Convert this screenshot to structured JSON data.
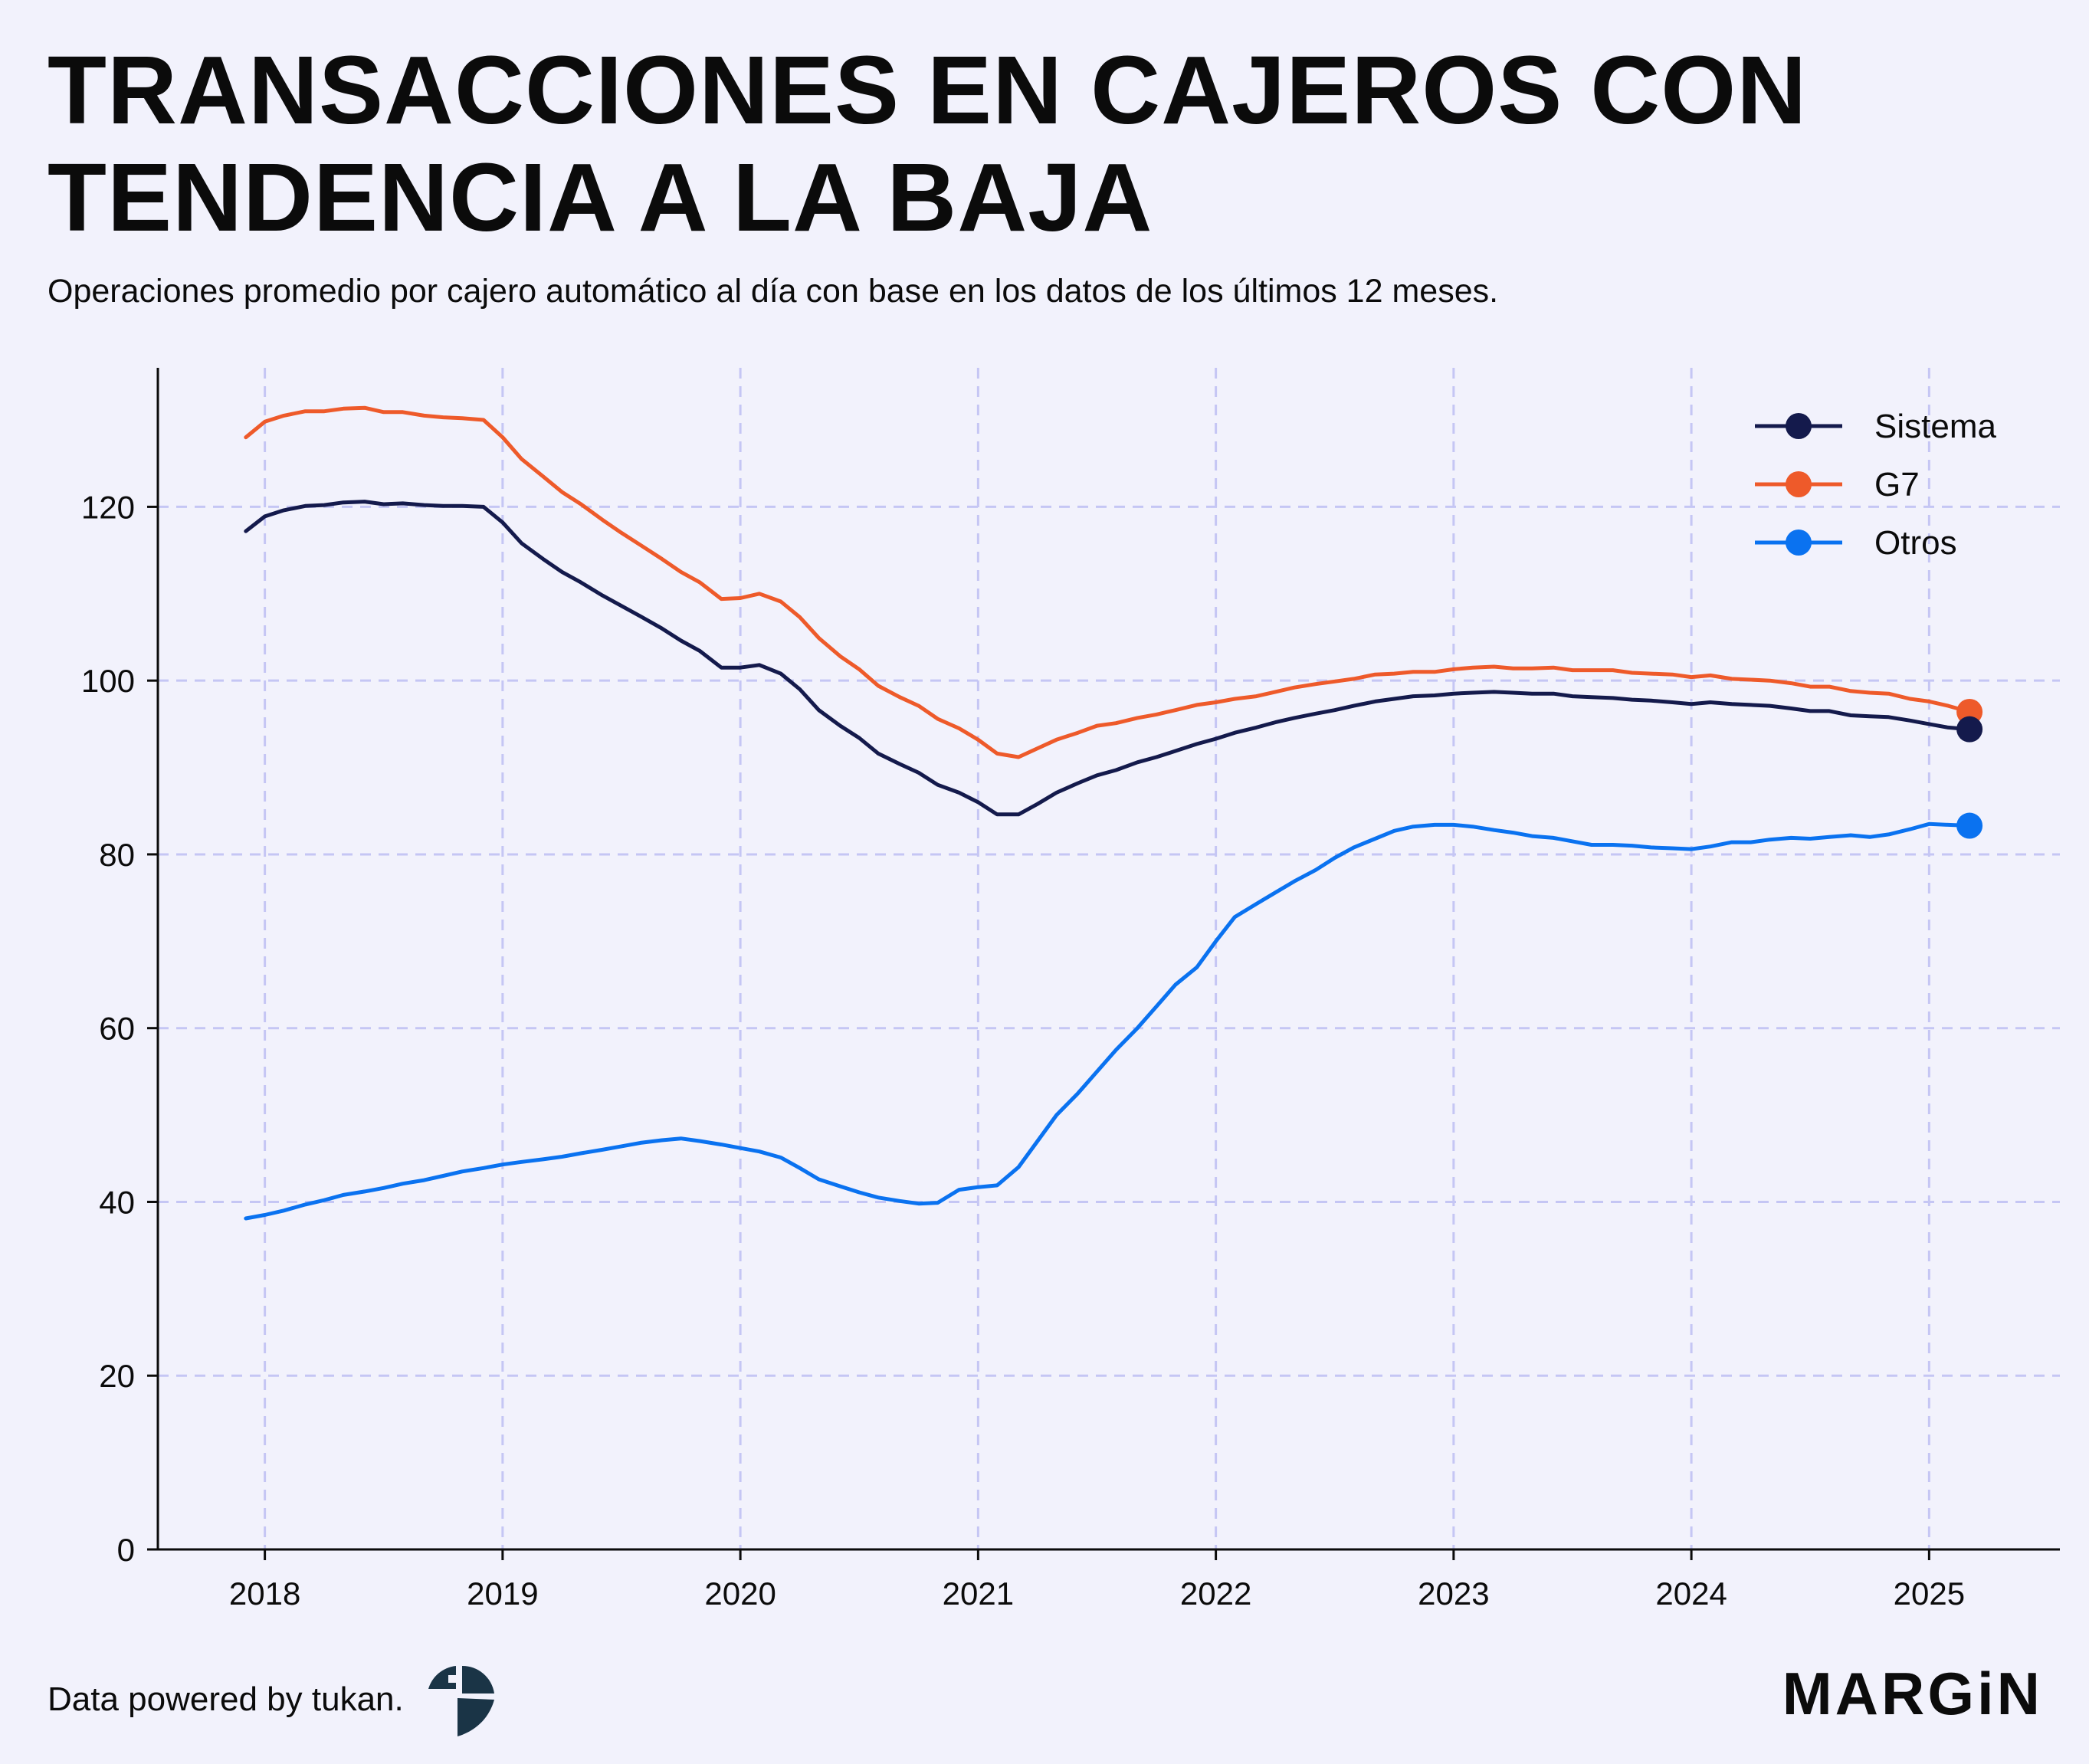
{
  "title_lines": [
    "TRANSACCIONES EN CAJEROS CON",
    "TENDENCIA A LA BAJA"
  ],
  "subtitle": "Operaciones promedio por cajero automático al día con base en los datos de los últimos 12 meses.",
  "footer": {
    "source": "Data powered by tukan.",
    "brand": "MARGiN"
  },
  "colors": {
    "sistema": "#141a4c",
    "g7": "#ee5a2a",
    "otros": "#0a72f0",
    "background": "#f2f2fc",
    "grid": "#c5c6f4"
  },
  "chart_data": {
    "type": "line",
    "title": "TRANSACCIONES EN CAJEROS CON TENDENCIA A LA BAJA",
    "xlabel": "",
    "ylabel": "",
    "xlim": [
      2017.55,
      2025.55
    ],
    "ylim": [
      0,
      136
    ],
    "x_ticks": [
      2018,
      2019,
      2020,
      2021,
      2022,
      2023,
      2024,
      2025
    ],
    "y_ticks": [
      0,
      20,
      40,
      60,
      80,
      100,
      120
    ],
    "grid": true,
    "legend_position": "top-right",
    "series": [
      {
        "name": "Sistema",
        "color": "#141a4c",
        "points": [
          [
            2017.92,
            117.2
          ],
          [
            2018.0,
            118.9
          ],
          [
            2018.08,
            119.6
          ],
          [
            2018.17,
            120.1
          ],
          [
            2018.25,
            120.2
          ],
          [
            2018.33,
            120.5
          ],
          [
            2018.42,
            120.6
          ],
          [
            2018.5,
            120.3
          ],
          [
            2018.58,
            120.4
          ],
          [
            2018.67,
            120.2
          ],
          [
            2018.75,
            120.1
          ],
          [
            2018.83,
            120.1
          ],
          [
            2018.92,
            120.0
          ],
          [
            2019.0,
            118.2
          ],
          [
            2019.08,
            115.8
          ],
          [
            2019.17,
            114.0
          ],
          [
            2019.25,
            112.5
          ],
          [
            2019.33,
            111.3
          ],
          [
            2019.42,
            109.8
          ],
          [
            2019.5,
            108.6
          ],
          [
            2019.58,
            107.4
          ],
          [
            2019.67,
            106.0
          ],
          [
            2019.75,
            104.6
          ],
          [
            2019.83,
            103.4
          ],
          [
            2019.92,
            101.5
          ],
          [
            2020.0,
            101.5
          ],
          [
            2020.08,
            101.8
          ],
          [
            2020.17,
            100.8
          ],
          [
            2020.25,
            99.0
          ],
          [
            2020.33,
            96.6
          ],
          [
            2020.42,
            94.8
          ],
          [
            2020.5,
            93.4
          ],
          [
            2020.58,
            91.6
          ],
          [
            2020.67,
            90.4
          ],
          [
            2020.75,
            89.4
          ],
          [
            2020.83,
            88.0
          ],
          [
            2020.92,
            87.1
          ],
          [
            2021.0,
            86.0
          ],
          [
            2021.08,
            84.6
          ],
          [
            2021.17,
            84.6
          ],
          [
            2021.25,
            85.8
          ],
          [
            2021.33,
            87.1
          ],
          [
            2021.42,
            88.2
          ],
          [
            2021.5,
            89.1
          ],
          [
            2021.58,
            89.7
          ],
          [
            2021.67,
            90.6
          ],
          [
            2021.75,
            91.2
          ],
          [
            2021.83,
            91.9
          ],
          [
            2021.92,
            92.7
          ],
          [
            2022.0,
            93.3
          ],
          [
            2022.08,
            94.0
          ],
          [
            2022.17,
            94.6
          ],
          [
            2022.25,
            95.2
          ],
          [
            2022.33,
            95.7
          ],
          [
            2022.42,
            96.2
          ],
          [
            2022.5,
            96.6
          ],
          [
            2022.58,
            97.1
          ],
          [
            2022.67,
            97.6
          ],
          [
            2022.75,
            97.9
          ],
          [
            2022.83,
            98.2
          ],
          [
            2022.92,
            98.3
          ],
          [
            2023.0,
            98.5
          ],
          [
            2023.08,
            98.6
          ],
          [
            2023.17,
            98.7
          ],
          [
            2023.25,
            98.6
          ],
          [
            2023.33,
            98.5
          ],
          [
            2023.42,
            98.5
          ],
          [
            2023.5,
            98.2
          ],
          [
            2023.58,
            98.1
          ],
          [
            2023.67,
            98.0
          ],
          [
            2023.75,
            97.8
          ],
          [
            2023.83,
            97.7
          ],
          [
            2023.92,
            97.5
          ],
          [
            2024.0,
            97.3
          ],
          [
            2024.08,
            97.5
          ],
          [
            2024.17,
            97.3
          ],
          [
            2024.25,
            97.2
          ],
          [
            2024.33,
            97.1
          ],
          [
            2024.42,
            96.8
          ],
          [
            2024.5,
            96.5
          ],
          [
            2024.58,
            96.5
          ],
          [
            2024.67,
            96.0
          ],
          [
            2024.75,
            95.9
          ],
          [
            2024.83,
            95.8
          ],
          [
            2024.92,
            95.4
          ],
          [
            2025.0,
            95.0
          ],
          [
            2025.08,
            94.6
          ],
          [
            2025.17,
            94.4
          ]
        ]
      },
      {
        "name": "G7",
        "color": "#ee5a2a",
        "points": [
          [
            2017.92,
            128.0
          ],
          [
            2018.0,
            129.8
          ],
          [
            2018.08,
            130.5
          ],
          [
            2018.17,
            131.0
          ],
          [
            2018.25,
            131.0
          ],
          [
            2018.33,
            131.3
          ],
          [
            2018.42,
            131.4
          ],
          [
            2018.5,
            130.9
          ],
          [
            2018.58,
            130.9
          ],
          [
            2018.67,
            130.5
          ],
          [
            2018.75,
            130.3
          ],
          [
            2018.83,
            130.2
          ],
          [
            2018.92,
            130.0
          ],
          [
            2019.0,
            128.0
          ],
          [
            2019.08,
            125.5
          ],
          [
            2019.17,
            123.5
          ],
          [
            2019.25,
            121.7
          ],
          [
            2019.33,
            120.3
          ],
          [
            2019.42,
            118.5
          ],
          [
            2019.5,
            117.0
          ],
          [
            2019.58,
            115.6
          ],
          [
            2019.67,
            114.0
          ],
          [
            2019.75,
            112.5
          ],
          [
            2019.83,
            111.3
          ],
          [
            2019.92,
            109.4
          ],
          [
            2020.0,
            109.5
          ],
          [
            2020.08,
            110.0
          ],
          [
            2020.17,
            109.1
          ],
          [
            2020.25,
            107.3
          ],
          [
            2020.33,
            104.9
          ],
          [
            2020.42,
            102.8
          ],
          [
            2020.5,
            101.3
          ],
          [
            2020.58,
            99.4
          ],
          [
            2020.67,
            98.1
          ],
          [
            2020.75,
            97.1
          ],
          [
            2020.83,
            95.6
          ],
          [
            2020.92,
            94.5
          ],
          [
            2021.0,
            93.2
          ],
          [
            2021.08,
            91.6
          ],
          [
            2021.17,
            91.2
          ],
          [
            2021.25,
            92.2
          ],
          [
            2021.33,
            93.2
          ],
          [
            2021.42,
            94.0
          ],
          [
            2021.5,
            94.8
          ],
          [
            2021.58,
            95.1
          ],
          [
            2021.67,
            95.7
          ],
          [
            2021.75,
            96.1
          ],
          [
            2021.83,
            96.6
          ],
          [
            2021.92,
            97.2
          ],
          [
            2022.0,
            97.5
          ],
          [
            2022.08,
            97.9
          ],
          [
            2022.17,
            98.2
          ],
          [
            2022.25,
            98.7
          ],
          [
            2022.33,
            99.2
          ],
          [
            2022.42,
            99.6
          ],
          [
            2022.5,
            99.9
          ],
          [
            2022.58,
            100.2
          ],
          [
            2022.67,
            100.7
          ],
          [
            2022.75,
            100.8
          ],
          [
            2022.83,
            101.0
          ],
          [
            2022.92,
            101.0
          ],
          [
            2023.0,
            101.3
          ],
          [
            2023.08,
            101.5
          ],
          [
            2023.17,
            101.6
          ],
          [
            2023.25,
            101.4
          ],
          [
            2023.33,
            101.4
          ],
          [
            2023.42,
            101.5
          ],
          [
            2023.5,
            101.2
          ],
          [
            2023.58,
            101.2
          ],
          [
            2023.67,
            101.2
          ],
          [
            2023.75,
            100.9
          ],
          [
            2023.83,
            100.8
          ],
          [
            2023.92,
            100.7
          ],
          [
            2024.0,
            100.4
          ],
          [
            2024.08,
            100.6
          ],
          [
            2024.17,
            100.2
          ],
          [
            2024.25,
            100.1
          ],
          [
            2024.33,
            100.0
          ],
          [
            2024.42,
            99.7
          ],
          [
            2024.5,
            99.3
          ],
          [
            2024.58,
            99.3
          ],
          [
            2024.67,
            98.8
          ],
          [
            2024.75,
            98.6
          ],
          [
            2024.83,
            98.5
          ],
          [
            2024.92,
            97.9
          ],
          [
            2025.0,
            97.6
          ],
          [
            2025.08,
            97.1
          ],
          [
            2025.17,
            96.4
          ]
        ]
      },
      {
        "name": "Otros",
        "color": "#0a72f0",
        "points": [
          [
            2017.92,
            38.1
          ],
          [
            2018.0,
            38.5
          ],
          [
            2018.08,
            39.0
          ],
          [
            2018.17,
            39.7
          ],
          [
            2018.25,
            40.2
          ],
          [
            2018.33,
            40.8
          ],
          [
            2018.42,
            41.2
          ],
          [
            2018.5,
            41.6
          ],
          [
            2018.58,
            42.1
          ],
          [
            2018.67,
            42.5
          ],
          [
            2018.75,
            43.0
          ],
          [
            2018.83,
            43.5
          ],
          [
            2018.92,
            43.9
          ],
          [
            2019.0,
            44.3
          ],
          [
            2019.08,
            44.6
          ],
          [
            2019.17,
            44.9
          ],
          [
            2019.25,
            45.2
          ],
          [
            2019.33,
            45.6
          ],
          [
            2019.42,
            46.0
          ],
          [
            2019.5,
            46.4
          ],
          [
            2019.58,
            46.8
          ],
          [
            2019.67,
            47.1
          ],
          [
            2019.75,
            47.3
          ],
          [
            2019.83,
            47.0
          ],
          [
            2019.92,
            46.6
          ],
          [
            2020.0,
            46.2
          ],
          [
            2020.08,
            45.8
          ],
          [
            2020.17,
            45.1
          ],
          [
            2020.25,
            43.9
          ],
          [
            2020.33,
            42.6
          ],
          [
            2020.42,
            41.8
          ],
          [
            2020.5,
            41.1
          ],
          [
            2020.58,
            40.5
          ],
          [
            2020.67,
            40.1
          ],
          [
            2020.75,
            39.8
          ],
          [
            2020.83,
            39.9
          ],
          [
            2020.92,
            41.4
          ],
          [
            2021.0,
            41.7
          ],
          [
            2021.08,
            41.9
          ],
          [
            2021.17,
            44.0
          ],
          [
            2021.25,
            47.0
          ],
          [
            2021.33,
            50.0
          ],
          [
            2021.42,
            52.5
          ],
          [
            2021.5,
            55.0
          ],
          [
            2021.58,
            57.5
          ],
          [
            2021.67,
            60.0
          ],
          [
            2021.75,
            62.5
          ],
          [
            2021.83,
            65.0
          ],
          [
            2021.92,
            67.0
          ],
          [
            2022.0,
            70.0
          ],
          [
            2022.08,
            72.8
          ],
          [
            2022.17,
            74.3
          ],
          [
            2022.25,
            75.6
          ],
          [
            2022.33,
            76.9
          ],
          [
            2022.42,
            78.2
          ],
          [
            2022.5,
            79.6
          ],
          [
            2022.58,
            80.8
          ],
          [
            2022.67,
            81.8
          ],
          [
            2022.75,
            82.7
          ],
          [
            2022.83,
            83.2
          ],
          [
            2022.92,
            83.4
          ],
          [
            2023.0,
            83.4
          ],
          [
            2023.08,
            83.2
          ],
          [
            2023.17,
            82.8
          ],
          [
            2023.25,
            82.5
          ],
          [
            2023.33,
            82.1
          ],
          [
            2023.42,
            81.9
          ],
          [
            2023.5,
            81.5
          ],
          [
            2023.58,
            81.1
          ],
          [
            2023.67,
            81.1
          ],
          [
            2023.75,
            81.0
          ],
          [
            2023.83,
            80.8
          ],
          [
            2023.92,
            80.7
          ],
          [
            2024.0,
            80.6
          ],
          [
            2024.08,
            80.9
          ],
          [
            2024.17,
            81.4
          ],
          [
            2024.25,
            81.4
          ],
          [
            2024.33,
            81.7
          ],
          [
            2024.42,
            81.9
          ],
          [
            2024.5,
            81.8
          ],
          [
            2024.58,
            82.0
          ],
          [
            2024.67,
            82.2
          ],
          [
            2024.75,
            82.0
          ],
          [
            2024.83,
            82.3
          ],
          [
            2024.92,
            82.9
          ],
          [
            2025.0,
            83.5
          ],
          [
            2025.08,
            83.4
          ],
          [
            2025.17,
            83.3
          ]
        ]
      }
    ]
  }
}
